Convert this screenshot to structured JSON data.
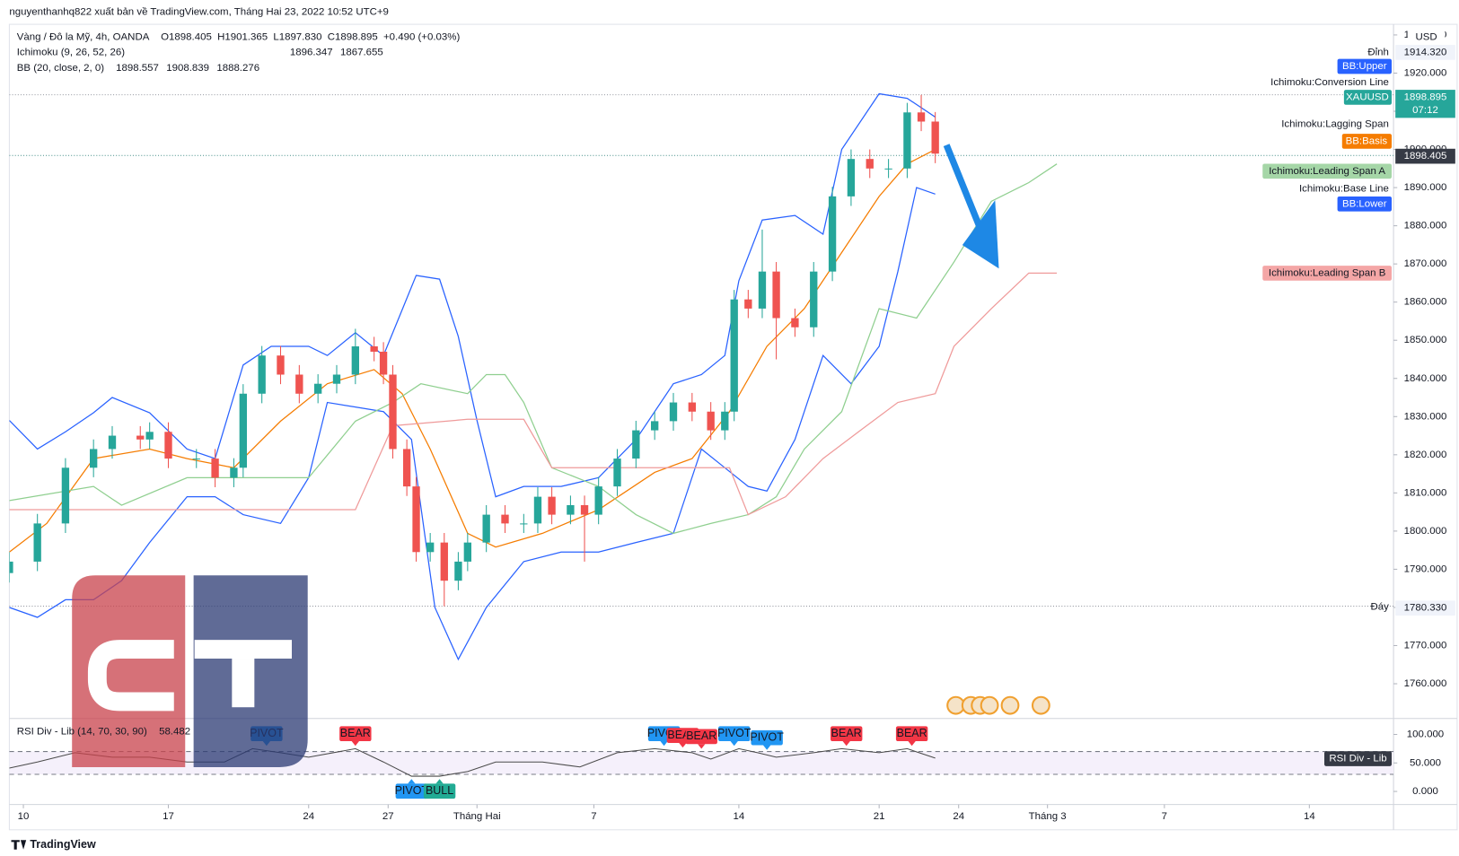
{
  "attribution": "nguyenthanhq822 xuất bản về TradingView.com, Tháng Hai 23, 2022 10:52 UTC+9",
  "footer": "TradingView",
  "chart_data": {
    "type": "candlestick",
    "symbol_title": "Vàng / Đô la Mỹ, 4h, OANDA",
    "ohlc_legend": [
      {
        "value": 1898.405,
        "label": "O1898.405"
      },
      {
        "value": 1901.365,
        "label": "H1901.365"
      },
      {
        "value": 1897.83,
        "label": "L1897.830"
      },
      {
        "value": 1898.895,
        "label": "C1898.895"
      },
      {
        "value": 0.49,
        "label": "+0.490 (+0.03%)"
      }
    ],
    "indicators": [
      {
        "name": "Ichimoku (9, 26, 52, 26)",
        "values": [
          {
            "value": 1896.347,
            "label": "1896.347"
          },
          {
            "value": 1867.655,
            "label": "1867.655"
          }
        ],
        "colors": [
          "#8fc98f",
          "#e57f7f"
        ]
      },
      {
        "name": "BB (20, close, 2, 0)",
        "values": [
          {
            "value": 1898.557,
            "label": "1898.557"
          },
          {
            "value": 1908.839,
            "label": "1908.839"
          },
          {
            "value": 1888.276,
            "label": "1888.276"
          }
        ],
        "colors": [
          "#f57c00",
          "#2962ff",
          "#2962ff"
        ]
      }
    ],
    "currency": "USD",
    "x": [
      0,
      6,
      12,
      18,
      22,
      28,
      30,
      34,
      40,
      44,
      48,
      50,
      54,
      58,
      62,
      66,
      70,
      74,
      78,
      80,
      82,
      85,
      87,
      90,
      93,
      96,
      98,
      102,
      106,
      110,
      113,
      116,
      120,
      123,
      126,
      130,
      134,
      138,
      142,
      146,
      150,
      153,
      155,
      158,
      161,
      164,
      168,
      172,
      176,
      180,
      184,
      188,
      192,
      195,
      198
    ],
    "open": [
      1789,
      1792,
      1802,
      1816.6,
      1821.5,
      1825,
      1824,
      1826,
      1819,
      1819,
      1814,
      1816.6,
      1836,
      1846,
      1841,
      1836,
      1838.6,
      1841,
      1848.4,
      1847,
      1841,
      1821.5,
      1811.7,
      1794.5,
      1797,
      1787,
      1792,
      1797,
      1804.3,
      1802,
      1802,
      1809,
      1804.3,
      1806.8,
      1804.3,
      1811.7,
      1819,
      1826.4,
      1828.8,
      1833.7,
      1831.3,
      1826.4,
      1831.3,
      1860.7,
      1858.3,
      1868,
      1855.8,
      1853.4,
      1868,
      1887.7,
      1897.5,
      1895,
      1895,
      1909.7,
      1907.3
    ],
    "high": [
      1794.5,
      1804.5,
      1819.1,
      1824,
      1827.5,
      1827.5,
      1828.5,
      1828.5,
      1821.5,
      1821.5,
      1819.1,
      1838.5,
      1848.5,
      1848.5,
      1843.5,
      1841.1,
      1843.5,
      1853,
      1850.9,
      1849.5,
      1843.5,
      1824,
      1814.2,
      1799.5,
      1799.5,
      1794.5,
      1799.5,
      1806.8,
      1806.8,
      1804.5,
      1811.5,
      1811.5,
      1809.3,
      1809.3,
      1814.2,
      1821.5,
      1828.9,
      1831.3,
      1836.2,
      1836.2,
      1833.8,
      1833.8,
      1863.2,
      1863.2,
      1879,
      1870.5,
      1858.3,
      1870.5,
      1890.2,
      1900,
      1900,
      1897.5,
      1912.2,
      1914.3,
      1909.8
    ],
    "low": [
      1786.5,
      1789.5,
      1799.5,
      1814.1,
      1819,
      1821.5,
      1821.5,
      1816.5,
      1816.5,
      1811.5,
      1811.5,
      1814.1,
      1833.5,
      1838.5,
      1833.5,
      1833.5,
      1836.1,
      1838.5,
      1844.5,
      1838.5,
      1819,
      1809.2,
      1792,
      1792,
      1780.3,
      1784.5,
      1789.5,
      1794.5,
      1799.5,
      1799.5,
      1799.5,
      1801.8,
      1801.8,
      1792,
      1801.8,
      1809.2,
      1816.5,
      1823.9,
      1826.3,
      1828.8,
      1823.9,
      1823.9,
      1828.8,
      1855.8,
      1855.8,
      1845,
      1850.9,
      1850.9,
      1865.5,
      1885.2,
      1892.5,
      1892.5,
      1892.5,
      1904.8,
      1896.4
    ],
    "close": [
      1792,
      1802,
      1816.6,
      1821.5,
      1825,
      1824,
      1826,
      1819,
      1819,
      1814,
      1816.6,
      1836,
      1846,
      1841,
      1836,
      1838.6,
      1841,
      1848.4,
      1847,
      1841,
      1821.5,
      1811.7,
      1794.5,
      1797,
      1787,
      1792,
      1797,
      1804.3,
      1802,
      1802,
      1809,
      1804.3,
      1806.8,
      1804.3,
      1811.7,
      1819,
      1826.4,
      1828.8,
      1833.7,
      1831.3,
      1826.4,
      1831.3,
      1860.7,
      1858.3,
      1868,
      1855.8,
      1853.4,
      1868,
      1887.7,
      1897.5,
      1895,
      1895,
      1909.7,
      1907.3,
      1898.9
    ],
    "up_color": "#26a69a",
    "down_color": "#ef5350",
    "xlim": [
      0,
      296
    ],
    "xticks": [
      {
        "value": 3,
        "label": "10"
      },
      {
        "value": 34,
        "label": "17"
      },
      {
        "value": 64,
        "label": "24"
      },
      {
        "value": 81,
        "label": "27"
      },
      {
        "value": 100,
        "label": "Tháng Hai"
      },
      {
        "value": 125,
        "label": "7"
      },
      {
        "value": 156,
        "label": "14"
      },
      {
        "value": 186,
        "label": "21"
      },
      {
        "value": 203,
        "label": "24"
      },
      {
        "value": 222,
        "label": "Tháng 3"
      },
      {
        "value": 247,
        "label": "7"
      },
      {
        "value": 278,
        "label": "14"
      }
    ],
    "ylim": [
      1750.9,
      1931.8
    ],
    "yticks": [
      {
        "value": 1760,
        "label": "1760.000"
      },
      {
        "value": 1770,
        "label": "1770.000"
      },
      {
        "value": 1780,
        "label": "1780.000"
      },
      {
        "value": 1790,
        "label": "1790.000"
      },
      {
        "value": 1800,
        "label": "1800.000"
      },
      {
        "value": 1810,
        "label": "1810.000"
      },
      {
        "value": 1820,
        "label": "1820.000"
      },
      {
        "value": 1830,
        "label": "1830.000"
      },
      {
        "value": 1840,
        "label": "1840.000"
      },
      {
        "value": 1850,
        "label": "1850.000"
      },
      {
        "value": 1860,
        "label": "1860.000"
      },
      {
        "value": 1870,
        "label": "1870.000"
      },
      {
        "value": 1880,
        "label": "1880.000"
      },
      {
        "value": 1890,
        "label": "1890.000"
      },
      {
        "value": 1900,
        "label": "1900.000"
      },
      {
        "value": 1910,
        "label": "1910.000"
      },
      {
        "value": 1920,
        "label": "1920.000"
      },
      {
        "value": 1930,
        "label": "1930.000"
      }
    ],
    "grid": false,
    "overlays": [
      {
        "name": "BB:Upper",
        "color": "#2962ff",
        "x": [
          0,
          6,
          12,
          18,
          22,
          30,
          38,
          44,
          50,
          56,
          64,
          68,
          74,
          80,
          84,
          87,
          92,
          96,
          100,
          104,
          110,
          118,
          126,
          134,
          142,
          148,
          153,
          156,
          161,
          168,
          174,
          178,
          186,
          192,
          198
        ],
        "values": [
          1829,
          1821.5,
          1826,
          1831,
          1835,
          1831,
          1821.5,
          1819,
          1843.5,
          1848.4,
          1848.4,
          1846,
          1852,
          1846,
          1858,
          1867,
          1866,
          1851,
          1829,
          1809,
          1811.7,
          1811.7,
          1814,
          1824,
          1838.6,
          1841,
          1846,
          1865.6,
          1881.5,
          1882.7,
          1877.8,
          1900,
          1914.6,
          1913.4,
          1908.5
        ]
      },
      {
        "name": "BB:Basis",
        "color": "#f57c00",
        "x": [
          0,
          8,
          18,
          30,
          38,
          48,
          58,
          68,
          78,
          84,
          90,
          98,
          104,
          114,
          126,
          138,
          146,
          154,
          162,
          170,
          178,
          186,
          192,
          198
        ],
        "values": [
          1794.5,
          1802,
          1819,
          1821.5,
          1819,
          1816.6,
          1828.8,
          1838.6,
          1842.3,
          1836,
          1821.5,
          1799.4,
          1795.8,
          1799.4,
          1805.6,
          1815.4,
          1819,
          1831.3,
          1848.4,
          1858.3,
          1873,
          1887.7,
          1896.2,
          1900
        ]
      },
      {
        "name": "BB:Lower",
        "color": "#2962ff",
        "x": [
          0,
          6,
          12,
          18,
          24,
          30,
          38,
          44,
          50,
          58,
          64,
          68,
          74,
          80,
          86,
          91,
          96,
          102,
          110,
          118,
          126,
          134,
          142,
          148,
          153,
          158,
          162,
          168,
          174,
          180,
          186,
          190,
          194,
          198
        ],
        "values": [
          1780,
          1777.4,
          1782,
          1782,
          1787,
          1797,
          1809,
          1809,
          1804.3,
          1802,
          1814,
          1833.7,
          1832.5,
          1831.3,
          1824,
          1780,
          1766.4,
          1780,
          1792,
          1794.5,
          1794.5,
          1797,
          1799.4,
          1821.5,
          1816.6,
          1811.7,
          1810.5,
          1824,
          1846,
          1838.6,
          1848.4,
          1868,
          1890,
          1888.3
        ]
      },
      {
        "name": "Ichimoku:Leading Span A",
        "color": "#8fcf8f",
        "x": [
          0,
          18,
          24,
          38,
          50,
          64,
          74,
          82,
          88,
          98,
          102,
          106,
          110,
          116,
          126,
          134,
          142,
          150,
          158,
          164,
          170,
          178,
          186,
          194,
          202,
          210,
          218,
          224
        ],
        "values": [
          1808,
          1811.7,
          1806.8,
          1814,
          1814,
          1814,
          1828.8,
          1833.7,
          1838.6,
          1836,
          1841,
          1841,
          1833.7,
          1816.6,
          1811.7,
          1804.3,
          1799.4,
          1802,
          1804.3,
          1809,
          1821.5,
          1831.3,
          1858.3,
          1855.8,
          1870.5,
          1886.4,
          1891.3,
          1896.2
        ]
      },
      {
        "name": "Ichimoku:Leading Span B",
        "color": "#ef9a9a",
        "x": [
          0,
          74,
          82,
          98,
          110,
          116,
          138,
          154,
          158,
          166,
          174,
          182,
          190,
          198,
          202,
          210,
          218,
          224
        ],
        "values": [
          1805.6,
          1805.6,
          1827.6,
          1829.3,
          1829.3,
          1816.6,
          1816.6,
          1816.6,
          1804.3,
          1809,
          1819,
          1826.4,
          1833.7,
          1836,
          1848.4,
          1858.3,
          1867.6,
          1867.6
        ]
      }
    ],
    "indicator_labels": [
      "Ichimoku:Conversion Line",
      "Ichimoku:Lagging Span",
      "Ichimoku:Base Line"
    ],
    "high_line": {
      "name": "Đỉnh",
      "price": {
        "value": 1914.32,
        "label": "1914.320"
      }
    },
    "low_line": {
      "name": "Đáy",
      "price": {
        "value": 1780.33,
        "label": "1780.330"
      }
    },
    "last": {
      "symbol": "XAUUSD",
      "price": {
        "value": 1898.895,
        "label": "1898.895"
      },
      "countdown": "07:12"
    },
    "bid": {
      "value": 1898.405,
      "label": "1898.405"
    },
    "rsi": {
      "title": "RSI Div - Lib (14, 70, 30, 90)",
      "last": {
        "value": 58.482,
        "label": "58.482"
      },
      "badge": "RSI Div - Lib",
      "color": "#4a4a4a",
      "x": [
        0,
        6,
        14,
        22,
        30,
        38,
        46,
        52,
        58,
        64,
        74,
        80,
        86,
        92,
        98,
        104,
        114,
        122,
        130,
        138,
        146,
        150,
        156,
        160,
        164,
        172,
        178,
        186,
        192,
        198
      ],
      "values": [
        41,
        51.7,
        68,
        60,
        60,
        51.7,
        51.7,
        75,
        68,
        60,
        75,
        51.7,
        26.7,
        26.7,
        35,
        51.7,
        51.7,
        43,
        68,
        75,
        68,
        56.7,
        75,
        68,
        60,
        68,
        75,
        68,
        75,
        58.5
      ],
      "ylim": [
        -23,
        128
      ],
      "yticks": [
        {
          "value": 0,
          "label": "0.000"
        },
        {
          "value": 50,
          "label": "50.000"
        },
        {
          "value": 100,
          "label": "100.000"
        }
      ],
      "levels": [
        70,
        30
      ],
      "signal_colors": {
        "PIVOT": "#2196f3",
        "BEAR": "#f23645",
        "BULL": "#22ab94"
      },
      "signals": [
        {
          "label": "PIVOT",
          "x": 55,
          "value": 75
        },
        {
          "label": "BEAR",
          "x": 74,
          "value": 75
        },
        {
          "label": "PIVOT",
          "x": 86,
          "value": 26.7
        },
        {
          "label": "BULL",
          "x": 92,
          "value": 26.7
        },
        {
          "label": "PIVOT",
          "x": 140,
          "value": 75
        },
        {
          "label": "BEAR",
          "x": 144,
          "value": 72
        },
        {
          "label": "BEAR",
          "x": 148,
          "value": 70
        },
        {
          "label": "PIVOT",
          "x": 155,
          "value": 75
        },
        {
          "label": "PIVOT",
          "x": 162,
          "value": 68
        },
        {
          "label": "BEAR",
          "x": 179,
          "value": 75
        },
        {
          "label": "BEAR",
          "x": 193,
          "value": 75
        }
      ]
    }
  }
}
